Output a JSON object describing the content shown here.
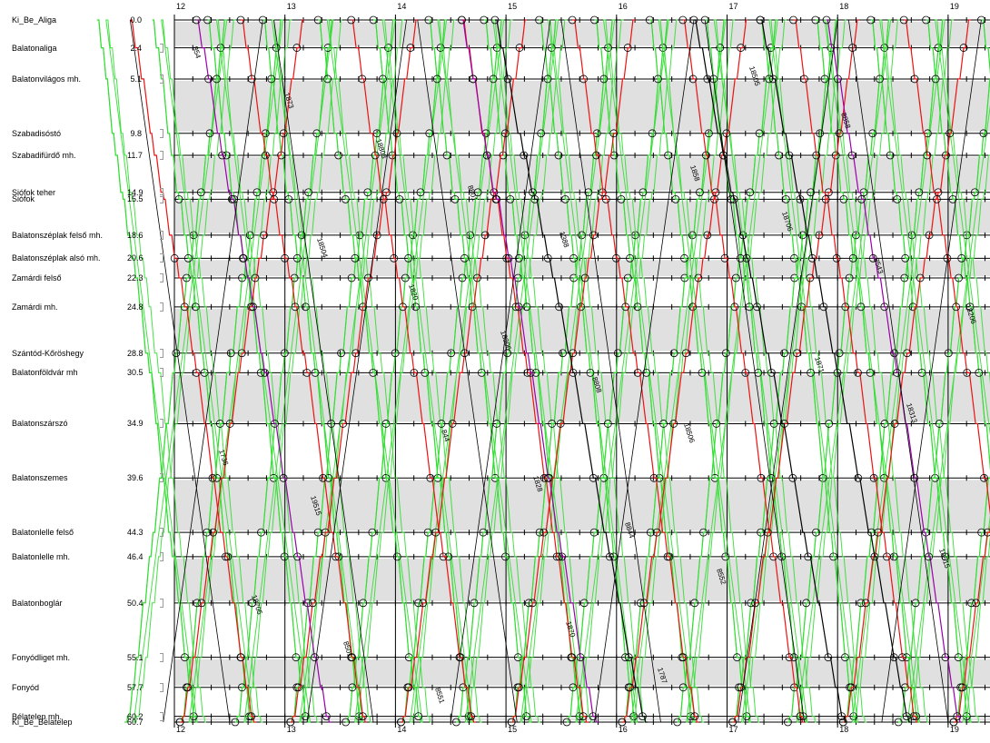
{
  "chart_data": {
    "type": "train-graph",
    "hours": [
      "12",
      "13",
      "14",
      "15",
      "16",
      "17",
      "18",
      "19"
    ],
    "stations": [
      {
        "name": "Ki_Be_Aliga",
        "km": "0.0"
      },
      {
        "name": "Balatonaliga",
        "km": "2.4"
      },
      {
        "name": "Balatonvilágos mh.",
        "km": "5.1"
      },
      {
        "name": "Szabadisóstó",
        "km": "9.8"
      },
      {
        "name": "Szabadifürdő mh.",
        "km": "11.7"
      },
      {
        "name": "Siófok teher",
        "km": "14.9"
      },
      {
        "name": "Siófok",
        "km": "15.5"
      },
      {
        "name": "Balatonszéplak felső mh.",
        "km": "18.6"
      },
      {
        "name": "Balatonszéplak alsó mh.",
        "km": "20.6"
      },
      {
        "name": "Zamárdi felső",
        "km": "22.3"
      },
      {
        "name": "Zamárdi mh.",
        "km": "24.8"
      },
      {
        "name": "Szántód-Kőröshegy",
        "km": "28.8"
      },
      {
        "name": "Balatonföldvár mh",
        "km": "30.5"
      },
      {
        "name": "Balatonszárszó",
        "km": "34.9"
      },
      {
        "name": "Balatonszemes",
        "km": "39.6"
      },
      {
        "name": "Balatonlelle felső",
        "km": "44.3"
      },
      {
        "name": "Balatonlelle mh.",
        "km": "46.4"
      },
      {
        "name": "Balatonboglár",
        "km": "50.4"
      },
      {
        "name": "Fonyódliget mh.",
        "km": "55.1"
      },
      {
        "name": "Fonyód",
        "km": "57.7"
      },
      {
        "name": "Bélatelep mh.",
        "km": "60.2"
      },
      {
        "name": "Ki_Be_Bélatelep",
        "km": "60.7"
      }
    ],
    "train_labels": [
      "854",
      "18504",
      "844",
      "1870",
      "1858",
      "1871",
      "18515",
      "1873",
      "1820",
      "1828",
      "1787",
      "18706",
      "18313",
      "18705",
      "18808",
      "18306",
      "8844",
      "18505",
      "8543",
      "1736",
      "8501",
      "8801",
      "8808",
      "8552",
      "8858",
      "18206",
      "19515",
      "8551",
      "1388",
      "18506"
    ],
    "colors": {
      "green": "#33dd33",
      "red": "#ee1111",
      "purple": "#9900aa",
      "black": "#000000",
      "gray_band": "#e0e0e0",
      "shade": "#b8b8b8"
    }
  }
}
